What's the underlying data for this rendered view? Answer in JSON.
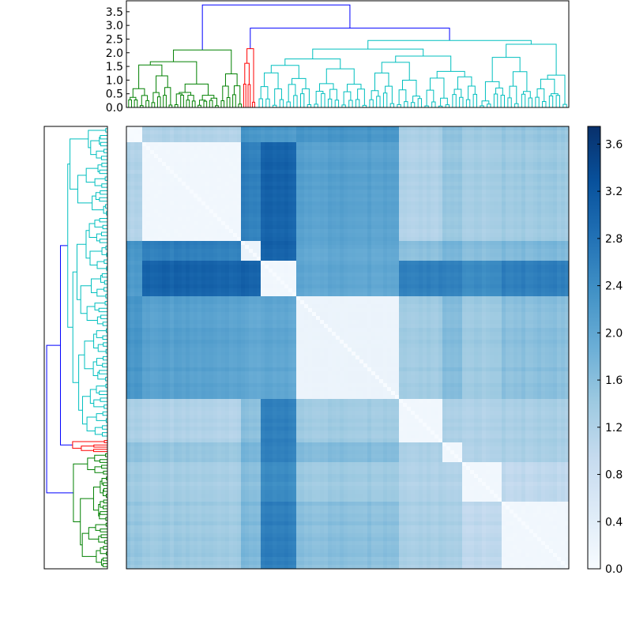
{
  "chart_data": [
    {
      "type": "dendrogram",
      "panel": "top",
      "ylim": [
        0.0,
        3.9
      ],
      "yticks": [
        "0.0",
        "0.5",
        "1.0",
        "1.5",
        "2.0",
        "2.5",
        "3.0",
        "3.5"
      ],
      "link_colors": {
        "root": "#0000ff",
        "cluster_green": "#008000",
        "cluster_red": "#ff0000",
        "cluster_cyan": "#00bfbf"
      },
      "merge_heights": {
        "root": 3.75,
        "red_cyan": 2.9,
        "cyan_top": 2.45,
        "red_top": 2.15,
        "green_top": 2.1
      }
    },
    {
      "type": "dendrogram",
      "panel": "left",
      "orientation": "left",
      "link_colors": {
        "root": "#0000ff",
        "cluster_green": "#008000",
        "cluster_red": "#ff0000",
        "cluster_cyan": "#00bfbf"
      }
    },
    {
      "type": "heatmap",
      "panel": "matrix",
      "description_levels": "symmetric distance matrix ordered by dendrogram leaves",
      "block_boundaries": [
        0.0,
        0.04,
        0.26,
        0.3,
        0.38,
        0.62,
        0.71,
        0.76,
        0.85,
        1.0
      ],
      "block_levels": [
        [
          0.0,
          1.2,
          2.3,
          2.2,
          2.3,
          1.3,
          1.6,
          1.4,
          1.5,
          1.2
        ],
        [
          1.2,
          0.1,
          2.6,
          3.0,
          2.1,
          1.2,
          1.5,
          1.3,
          1.4,
          1.2
        ],
        [
          2.3,
          2.6,
          0.2,
          3.0,
          2.0,
          1.6,
          1.8,
          1.6,
          1.7,
          1.6
        ],
        [
          2.2,
          3.0,
          3.0,
          0.1,
          2.0,
          2.6,
          2.6,
          2.4,
          2.6,
          2.5
        ],
        [
          2.3,
          2.1,
          2.0,
          2.0,
          0.2,
          1.4,
          1.7,
          1.4,
          1.6,
          1.5
        ],
        [
          1.3,
          1.2,
          1.6,
          2.6,
          1.4,
          0.1,
          1.3,
          1.2,
          1.3,
          1.2
        ],
        [
          1.6,
          1.5,
          1.8,
          2.6,
          1.7,
          1.3,
          0.1,
          1.2,
          1.3,
          1.2
        ],
        [
          1.4,
          1.3,
          1.6,
          2.4,
          1.4,
          1.2,
          1.2,
          0.1,
          1.0,
          1.1
        ],
        [
          1.5,
          1.4,
          1.7,
          2.6,
          1.6,
          1.3,
          1.3,
          1.0,
          0.1,
          1.0
        ],
        [
          1.2,
          1.2,
          1.6,
          2.5,
          1.5,
          1.2,
          1.2,
          1.1,
          1.0,
          0.1
        ]
      ],
      "colormap": "Blues",
      "vmin": 0.0,
      "vmax": 3.75
    },
    {
      "type": "colorbar",
      "panel": "colorbar",
      "colormap": "Blues",
      "vmin": 0.0,
      "vmax": 3.75,
      "ticks": [
        "0.0",
        "0.4",
        "0.8",
        "1.2",
        "1.6",
        "2.0",
        "2.4",
        "2.8",
        "3.2",
        "3.6"
      ]
    }
  ]
}
